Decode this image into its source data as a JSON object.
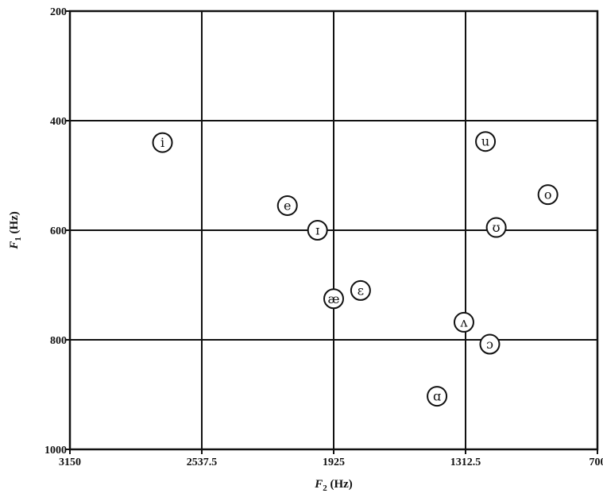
{
  "chart_data": {
    "type": "scatter",
    "title": "",
    "xlabel": {
      "symbol": "F",
      "sub": "2",
      "unit": " (Hz)"
    },
    "ylabel": {
      "symbol": "F",
      "sub": "1",
      "unit": " (Hz)"
    },
    "xlim": [
      3150,
      700
    ],
    "ylim": [
      200,
      1000
    ],
    "x_reversed": true,
    "y_reversed": true,
    "x_ticks": [
      "3150",
      "2537.5",
      "1925",
      "1312.5",
      "700"
    ],
    "x_tick_values": [
      3150,
      2537.5,
      1925,
      1312.5,
      700
    ],
    "y_ticks": [
      "200",
      "400",
      "600",
      "800",
      "1000"
    ],
    "y_tick_values": [
      200,
      400,
      600,
      800,
      1000
    ],
    "grid": true,
    "points": [
      {
        "label": "i",
        "x": 2720,
        "y": 440
      },
      {
        "label": "e",
        "x": 2140,
        "y": 555
      },
      {
        "label": "ɪ",
        "x": 2000,
        "y": 600
      },
      {
        "label": "æ",
        "x": 1925,
        "y": 725
      },
      {
        "label": "ɛ",
        "x": 1800,
        "y": 710
      },
      {
        "label": "u",
        "x": 1220,
        "y": 438
      },
      {
        "label": "o",
        "x": 930,
        "y": 535
      },
      {
        "label": "ʊ",
        "x": 1170,
        "y": 595
      },
      {
        "label": "ʌ",
        "x": 1320,
        "y": 768
      },
      {
        "label": "ɔ",
        "x": 1200,
        "y": 808
      },
      {
        "label": "ɑ",
        "x": 1445,
        "y": 903
      }
    ]
  }
}
